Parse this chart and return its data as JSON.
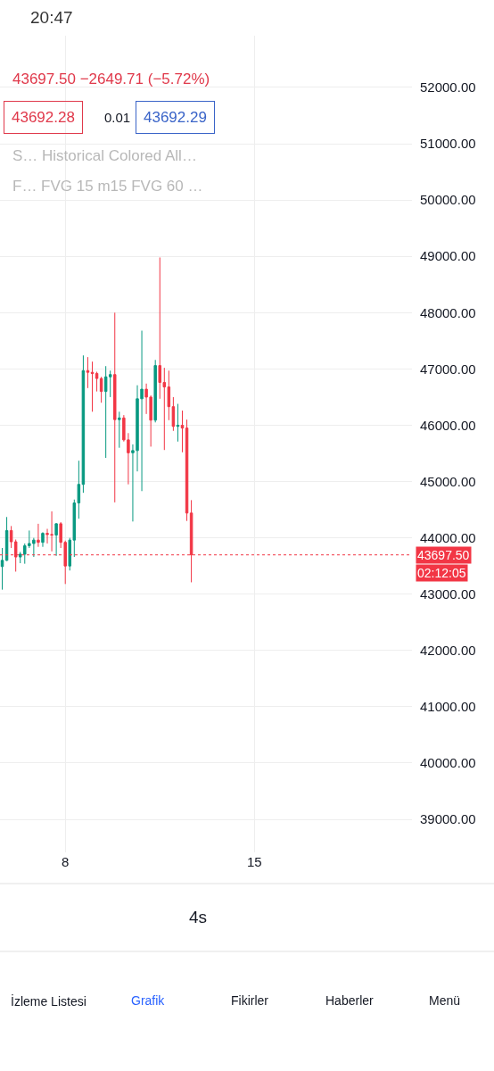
{
  "chart_data": {
    "type": "candlestick",
    "x": [
      "--01-05T16:00",
      "--01-05T20:00",
      "--01-06T00:00",
      "--01-06T04:00",
      "--01-06T08:00",
      "--01-06T12:00",
      "--01-06T16:00",
      "--01-06T20:00",
      "--01-07T00:00",
      "--01-07T04:00",
      "--01-07T08:00",
      "--01-07T12:00",
      "--01-07T16:00",
      "--01-07T20:00",
      "--01-08T00:00",
      "--01-08T04:00",
      "--01-08T08:00",
      "--01-08T12:00",
      "--01-08T16:00",
      "--01-08T20:00",
      "--01-09T00:00",
      "--01-09T04:00",
      "--01-09T08:00",
      "--01-09T12:00",
      "--01-09T16:00",
      "--01-09T20:00",
      "--01-10T00:00",
      "--01-10T04:00",
      "--01-10T08:00",
      "--01-10T12:00",
      "--01-10T16:00",
      "--01-10T20:00",
      "--01-11T00:00",
      "--01-11T04:00",
      "--01-11T08:00",
      "--01-11T12:00",
      "--01-11T16:00",
      "--01-11T20:00",
      "--01-12T00:00",
      "--01-12T04:00",
      "--01-12T08:00",
      "--01-12T12:00",
      "--01-12T16:00"
    ],
    "ohlc": [
      [
        43490,
        43820,
        43080,
        43600
      ],
      [
        43600,
        44370,
        43590,
        44130
      ],
      [
        44130,
        44210,
        43820,
        43930
      ],
      [
        43930,
        43970,
        43400,
        43660
      ],
      [
        43660,
        43750,
        43550,
        43710
      ],
      [
        43710,
        43900,
        43540,
        43860
      ],
      [
        43860,
        44130,
        43820,
        43900
      ],
      [
        43900,
        44000,
        43660,
        43960
      ],
      [
        43960,
        44250,
        43840,
        43920
      ],
      [
        43920,
        44100,
        43840,
        44080
      ],
      [
        44080,
        44160,
        43900,
        44060
      ],
      [
        44060,
        44470,
        43760,
        44050
      ],
      [
        44050,
        44260,
        43680,
        44250
      ],
      [
        44250,
        44280,
        43820,
        43920
      ],
      [
        43920,
        43950,
        43180,
        43500
      ],
      [
        43500,
        44000,
        43420,
        43960
      ],
      [
        43960,
        44680,
        43660,
        44620
      ],
      [
        44620,
        45370,
        44340,
        44950
      ],
      [
        44950,
        47240,
        44800,
        46970
      ],
      [
        46970,
        47210,
        46660,
        46940
      ],
      [
        46940,
        47130,
        46240,
        46920
      ],
      [
        46920,
        46950,
        46600,
        46830
      ],
      [
        46830,
        46860,
        46400,
        46600
      ],
      [
        46600,
        47050,
        45420,
        46860
      ],
      [
        46860,
        46970,
        46500,
        46900
      ],
      [
        46900,
        48000,
        44630,
        46100
      ],
      [
        46100,
        46240,
        45600,
        46130
      ],
      [
        46130,
        46180,
        45710,
        45740
      ],
      [
        45740,
        45860,
        44950,
        45510
      ],
      [
        45510,
        45660,
        44290,
        45550
      ],
      [
        45550,
        46710,
        45180,
        46470
      ],
      [
        46470,
        47680,
        44830,
        46640
      ],
      [
        46640,
        46740,
        46200,
        46500
      ],
      [
        46500,
        46530,
        45620,
        46090
      ],
      [
        46090,
        47160,
        46050,
        47060
      ],
      [
        47060,
        48980,
        46470,
        46760
      ],
      [
        46760,
        47020,
        45560,
        46680
      ],
      [
        46680,
        46970,
        46090,
        46330
      ],
      [
        46330,
        46500,
        45900,
        45980
      ],
      [
        45980,
        46380,
        45710,
        46000
      ],
      [
        46000,
        46260,
        45520,
        45950
      ],
      [
        45950,
        46100,
        44300,
        44440
      ],
      [
        44440,
        44670,
        43210,
        43697.5
      ]
    ],
    "colors": [
      "#089981",
      "#089981",
      "#f23645",
      "#f23645",
      "#089981",
      "#089981",
      "#089981",
      "#089981",
      "#f23645",
      "#089981",
      "#f23645",
      "#f23645",
      "#089981",
      "#f23645",
      "#f23645",
      "#089981",
      "#089981",
      "#089981",
      "#089981",
      "#f23645",
      "#f23645",
      "#f23645",
      "#f23645",
      "#089981",
      "#089981",
      "#f23645",
      "#089981",
      "#f23645",
      "#f23645",
      "#089981",
      "#089981",
      "#089981",
      "#f23645",
      "#f23645",
      "#089981",
      "#f23645",
      "#f23645",
      "#f23645",
      "#f23645",
      "#089981",
      "#f23645",
      "#f23645",
      "#f23645"
    ],
    "xlim": [
      "--01-05T14:00",
      "--01-20T20:00"
    ],
    "xticks": [
      {
        "value": "--01-08",
        "label": "8"
      },
      {
        "value": "--01-15",
        "label": "15"
      }
    ],
    "ylim": [
      38414,
      52919
    ],
    "yticks": [
      {
        "value": 39000,
        "label": "39000.00"
      },
      {
        "value": 40000,
        "label": "40000.00"
      },
      {
        "value": 41000,
        "label": "41000.00"
      },
      {
        "value": 42000,
        "label": "42000.00"
      },
      {
        "value": 43000,
        "label": "43000.00"
      },
      {
        "value": 44000,
        "label": "44000.00"
      },
      {
        "value": 45000,
        "label": "45000.00"
      },
      {
        "value": 46000,
        "label": "46000.00"
      },
      {
        "value": 47000,
        "label": "47000.00"
      },
      {
        "value": 48000,
        "label": "48000.00"
      },
      {
        "value": 49000,
        "label": "49000.00"
      },
      {
        "value": 50000,
        "label": "50000.00"
      },
      {
        "value": 51000,
        "label": "51000.00"
      },
      {
        "value": 52000,
        "label": "52000.00"
      }
    ],
    "grid": true,
    "ref_lines": [
      {
        "axis": "y",
        "value": 43697.5,
        "label": "43697.50",
        "color": "#f23645",
        "line_style": "dotted"
      }
    ],
    "annotations": [
      "20:47",
      "43697.50 −2649.71 (−5.72%)",
      "43692.28",
      "0.01",
      "43692.29",
      "S… Historical Colored All…",
      "F… FVG 15 m15 FVG 60 …",
      "02:12:05",
      "4s",
      "İzleme Listesi",
      "Grafik",
      "Fikirler",
      "Haberler",
      "Menü"
    ]
  }
}
